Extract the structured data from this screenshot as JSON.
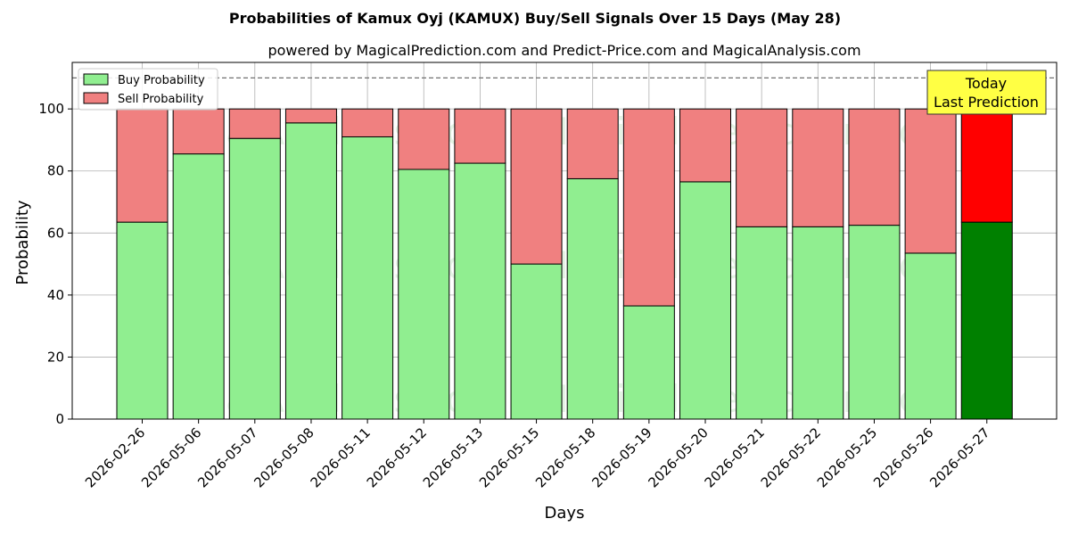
{
  "chart_data": {
    "type": "bar",
    "stacked": true,
    "title": "Probabilities of Kamux Oyj (KAMUX) Buy/Sell Signals Over 15 Days (May 28)",
    "subtitle": "powered by MagicalPrediction.com and Predict-Price.com and MagicalAnalysis.com",
    "xlabel": "Days",
    "ylabel": "Probability",
    "ylim": [
      0,
      115
    ],
    "yticks": [
      0,
      20,
      40,
      60,
      80,
      100
    ],
    "reference_line": 110,
    "grid": true,
    "legend_position": "top-left",
    "categories": [
      "2026-02-26",
      "2026-05-06",
      "2026-05-07",
      "2026-05-08",
      "2026-05-11",
      "2026-05-12",
      "2026-05-13",
      "2026-05-15",
      "2026-05-18",
      "2026-05-19",
      "2026-05-20",
      "2026-05-21",
      "2026-05-22",
      "2026-05-25",
      "2026-05-26",
      "2026-05-27"
    ],
    "series": [
      {
        "name": "Buy Probability",
        "color": "#90ee90",
        "highlight_color": "#008000",
        "values": [
          63.5,
          85.5,
          90.5,
          95.5,
          91,
          80.5,
          82.5,
          50,
          77.5,
          36.5,
          76.5,
          62,
          62,
          62.5,
          53.5,
          63.5
        ]
      },
      {
        "name": "Sell Probability",
        "color": "#f08080",
        "highlight_color": "#ff0000",
        "values": [
          36.5,
          14.5,
          9.5,
          4.5,
          9,
          19.5,
          17.5,
          50,
          22.5,
          63.5,
          23.5,
          38,
          38,
          37.5,
          46.5,
          36.5
        ]
      }
    ],
    "annotation": {
      "line1": "Today",
      "line2": "Last Prediction",
      "color": "#ffff44"
    },
    "watermarks": [
      "MagicalAnalysis.com",
      "MagicalPrediction.com"
    ]
  }
}
